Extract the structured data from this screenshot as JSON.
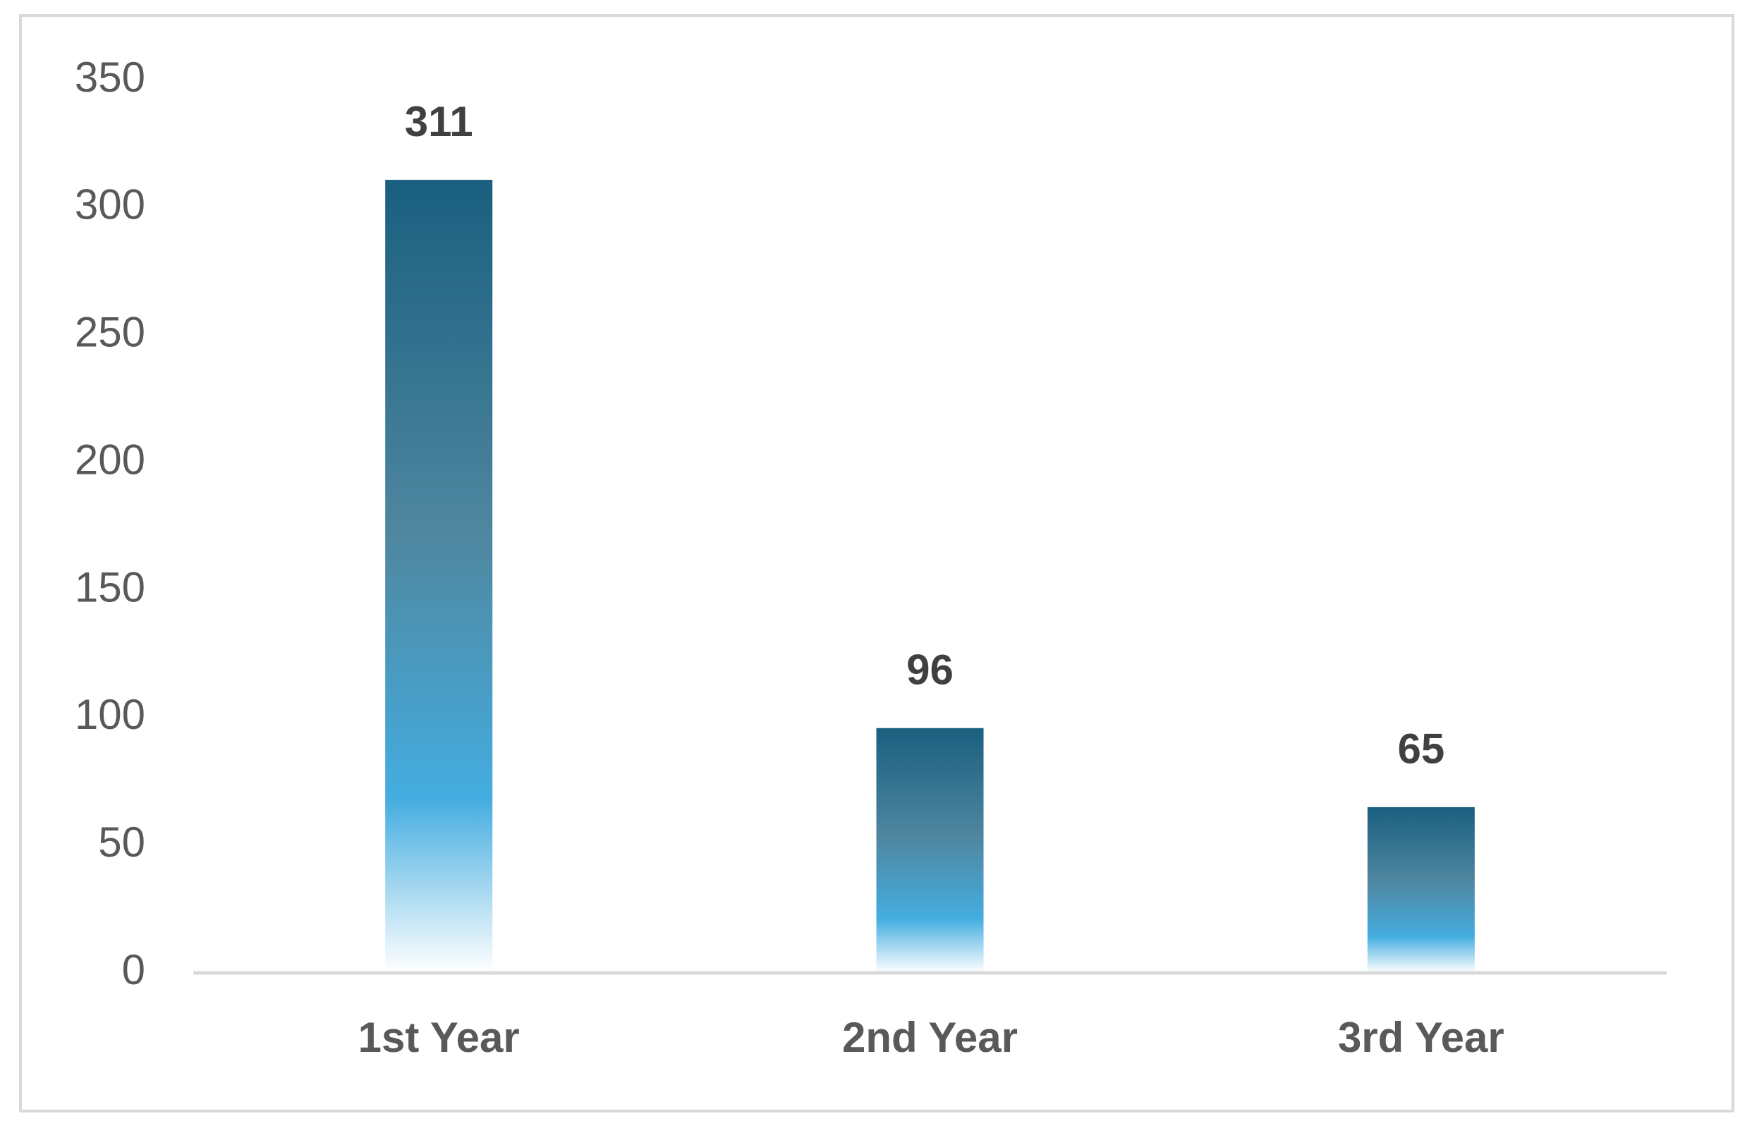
{
  "chart_data": {
    "type": "bar",
    "categories": [
      "1st Year",
      "2nd Year",
      "3rd Year"
    ],
    "values": [
      311,
      96,
      65
    ],
    "colors": [
      "#1a5f7f",
      "#4f87a0",
      "#44ade0",
      "#ffffff"
    ],
    "ylim": [
      0,
      350
    ],
    "yticks": [
      0,
      50,
      100,
      150,
      200,
      250,
      300,
      350
    ],
    "grid": false,
    "data_labels": true
  }
}
